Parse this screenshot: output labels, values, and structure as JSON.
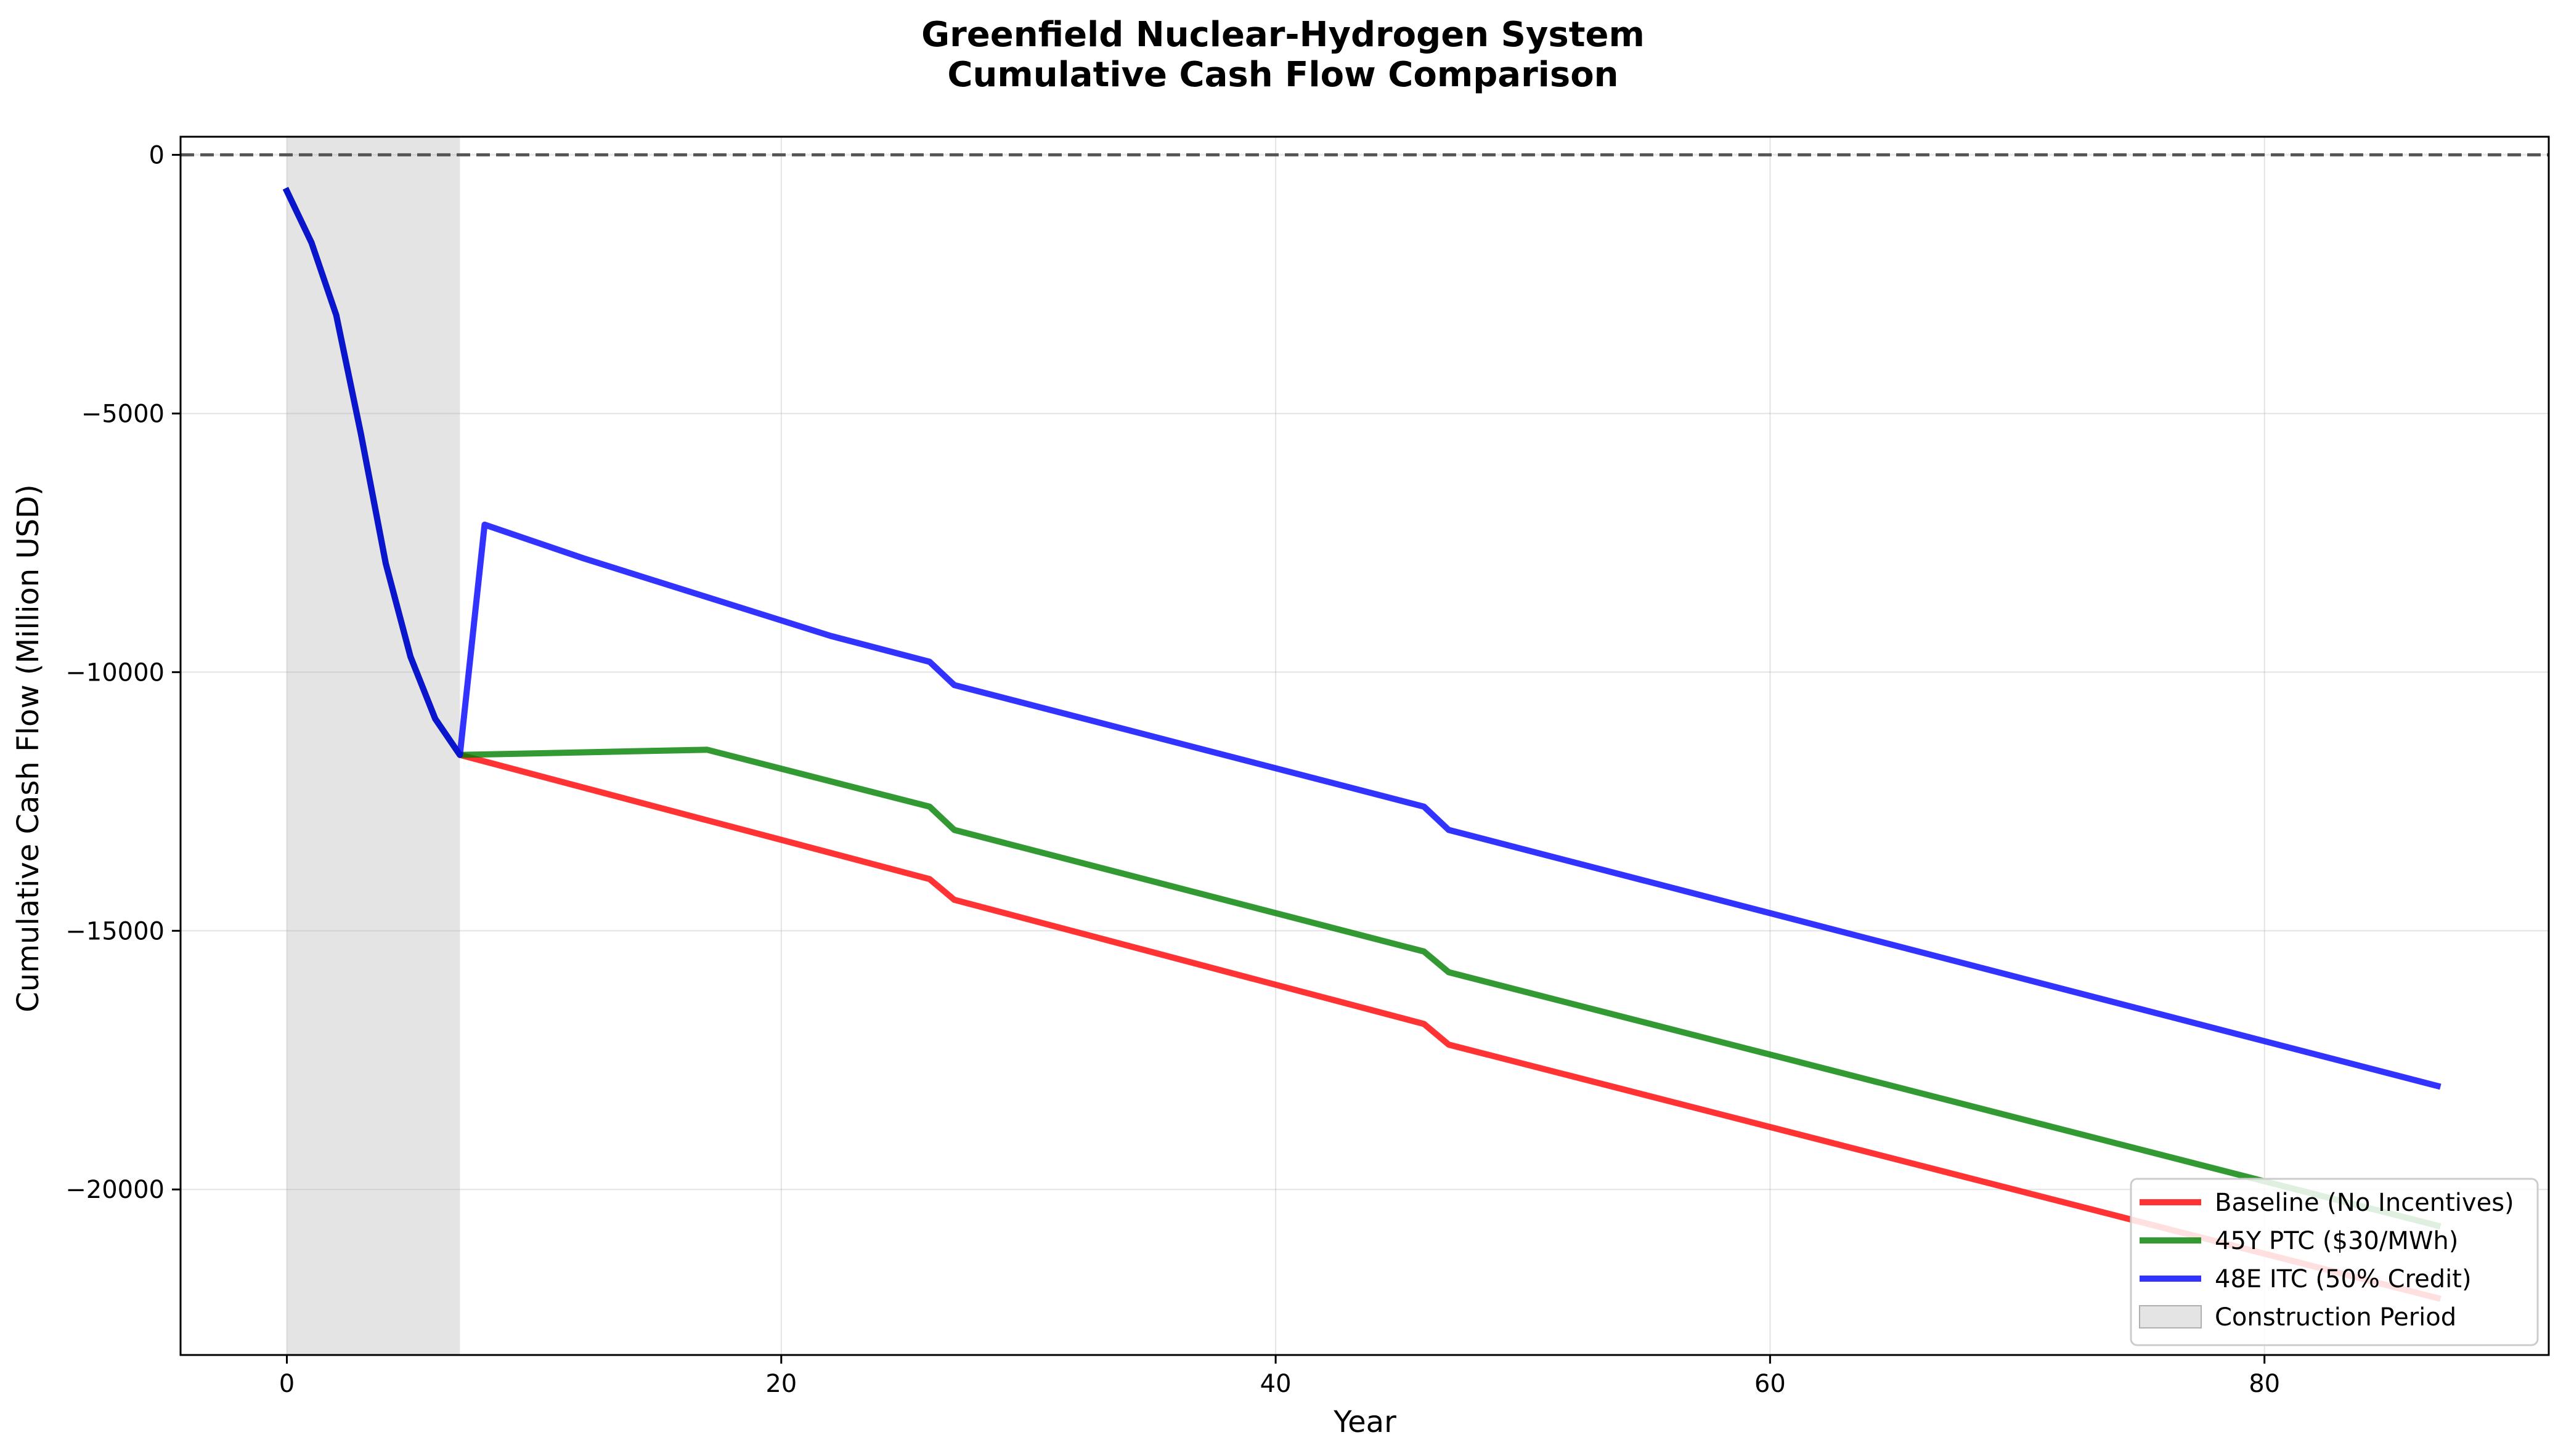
{
  "chart_data": {
    "type": "line",
    "title": [
      "Greenfield Nuclear-Hydrogen System",
      "Cumulative Cash Flow Comparison"
    ],
    "xlabel": "Year",
    "ylabel": "Cumulative Cash Flow (Million USD)",
    "xlim": [
      -4.3,
      91.5
    ],
    "ylim": [
      -23200,
      350
    ],
    "xticks": [
      0,
      20,
      40,
      60,
      80
    ],
    "yticks": [
      0,
      -5000,
      -10000,
      -15000,
      -20000
    ],
    "ytick_labels": [
      "0",
      "−5000",
      "−10000",
      "−15000",
      "−20000"
    ],
    "grid": true,
    "reference_line": {
      "y": 0,
      "style": "dashed",
      "color": "#555555"
    },
    "shaded_region": {
      "label": "Construction Period",
      "x_start": 0,
      "x_end": 7,
      "color": "#d3d3d3"
    },
    "legend_position": "lower-right",
    "series": [
      {
        "name": "Baseline (No Incentives)",
        "color": "#ff0000",
        "x": [
          0,
          1,
          2,
          3,
          4,
          5,
          6,
          7,
          26,
          27,
          46,
          47,
          87
        ],
        "values": [
          -700,
          -1700,
          -3100,
          -5400,
          -7900,
          -9700,
          -10900,
          -11600,
          -14000,
          -14400,
          -16800,
          -17200,
          -22100
        ]
      },
      {
        "name": "45Y PTC ($30/MWh)",
        "color": "#008000",
        "x": [
          0,
          1,
          2,
          3,
          4,
          5,
          6,
          7,
          17,
          26,
          27,
          46,
          47,
          87
        ],
        "values": [
          -700,
          -1700,
          -3100,
          -5400,
          -7900,
          -9700,
          -10900,
          -11600,
          -11500,
          -12600,
          -13050,
          -15400,
          -15800,
          -20700
        ]
      },
      {
        "name": "48E ITC (50% Credit)",
        "color": "#0000ff",
        "x": [
          0,
          1,
          2,
          3,
          4,
          5,
          6,
          7,
          8,
          12,
          17,
          22,
          26,
          27,
          46,
          47,
          87
        ],
        "values": [
          -700,
          -1700,
          -3100,
          -5400,
          -7900,
          -9700,
          -10900,
          -11600,
          -7150,
          -7800,
          -8550,
          -9300,
          -9800,
          -10250,
          -12600,
          -13050,
          -18000
        ]
      }
    ]
  }
}
